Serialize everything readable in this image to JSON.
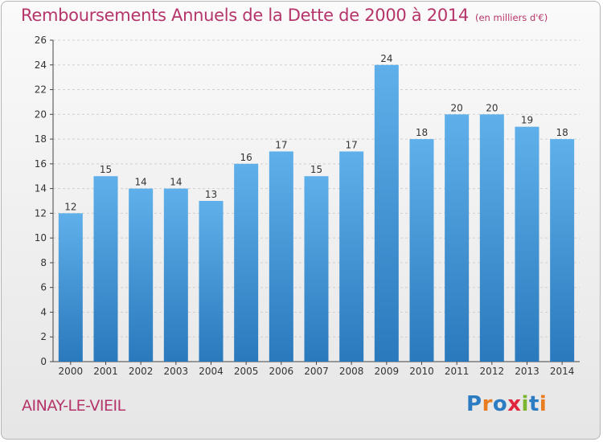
{
  "title": "Remboursements Annuels de la Dette de 2000 à 2014",
  "unit": "(en milliers d'€)",
  "place": "AINAY-LE-VIEIL",
  "logo": "Proxiti",
  "colors": {
    "title": "#b5356a",
    "bar_top": "#5fb0ea",
    "bar_bottom": "#2a79bd",
    "logo": [
      "#2b7cc2",
      "#e87c1f",
      "#2b7cc2",
      "#e0263e",
      "#7cb52f",
      "#2b7cc2",
      "#e87c1f"
    ]
  },
  "chart_data": {
    "type": "bar",
    "categories": [
      "2000",
      "2001",
      "2002",
      "2003",
      "2004",
      "2005",
      "2006",
      "2007",
      "2008",
      "2009",
      "2010",
      "2011",
      "2012",
      "2013",
      "2014"
    ],
    "values": [
      12,
      15,
      14,
      14,
      13,
      16,
      17,
      15,
      17,
      24,
      18,
      20,
      20,
      19,
      18
    ],
    "ylim": [
      0,
      26
    ],
    "yticks": [
      0,
      2,
      4,
      6,
      8,
      10,
      12,
      14,
      16,
      18,
      20,
      22,
      24,
      26
    ],
    "grid": true,
    "data_labels": true
  }
}
